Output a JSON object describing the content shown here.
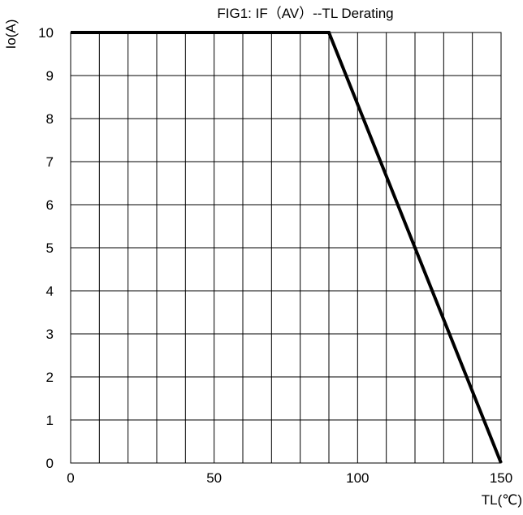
{
  "chart_data": {
    "type": "line",
    "title": "FIG1: IF（AV）--TL  Derating",
    "xlabel": "TL(℃)",
    "ylabel": "Io(A)",
    "xlim": [
      0,
      150
    ],
    "ylim": [
      0,
      10
    ],
    "x_ticks": [
      0,
      50,
      100,
      150
    ],
    "y_ticks": [
      0,
      1,
      2,
      3,
      4,
      5,
      6,
      7,
      8,
      9,
      10
    ],
    "x_tick_labels": [
      "0",
      "50",
      "100",
      "150"
    ],
    "y_tick_labels": [
      "0",
      "1",
      "2",
      "3",
      "4",
      "5",
      "6",
      "7",
      "8",
      "9",
      "10"
    ],
    "x_grid_step": 10,
    "y_grid_step": 1,
    "grid": true,
    "series": [
      {
        "x": [
          0,
          90,
          150
        ],
        "y": [
          10,
          10,
          0
        ]
      }
    ],
    "colors": {
      "line": "#000000",
      "grid": "#000000"
    }
  }
}
